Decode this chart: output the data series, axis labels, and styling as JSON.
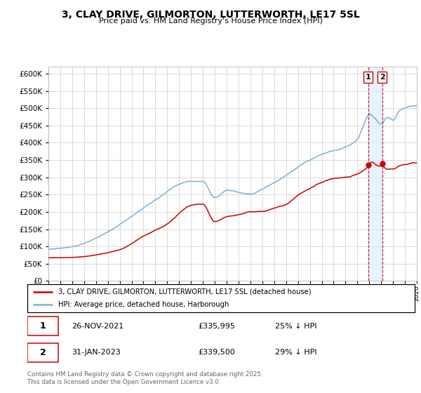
{
  "title": "3, CLAY DRIVE, GILMORTON, LUTTERWORTH, LE17 5SL",
  "subtitle": "Price paid vs. HM Land Registry's House Price Index (HPI)",
  "legend_line1": "3, CLAY DRIVE, GILMORTON, LUTTERWORTH, LE17 5SL (detached house)",
  "legend_line2": "HPI: Average price, detached house, Harborough",
  "annotation1_date": "26-NOV-2021",
  "annotation1_price": "£335,995",
  "annotation1_hpi": "25% ↓ HPI",
  "annotation2_date": "31-JAN-2023",
  "annotation2_price": "£339,500",
  "annotation2_hpi": "29% ↓ HPI",
  "footer": "Contains HM Land Registry data © Crown copyright and database right 2025.\nThis data is licensed under the Open Government Licence v3.0.",
  "property_color": "#cc0000",
  "hpi_color": "#7ab0d4",
  "vline_color": "#cc0000",
  "shade_color": "#ddeeff",
  "background_color": "#ffffff",
  "grid_color": "#cccccc",
  "ylim": [
    0,
    620000
  ],
  "yticks": [
    0,
    50000,
    100000,
    150000,
    200000,
    250000,
    300000,
    350000,
    400000,
    450000,
    500000,
    550000,
    600000
  ],
  "sale1_x": 2021.9,
  "sale1_y": 335995,
  "sale2_x": 2023.08,
  "sale2_y": 339500,
  "xmin": 1995,
  "xmax": 2026
}
